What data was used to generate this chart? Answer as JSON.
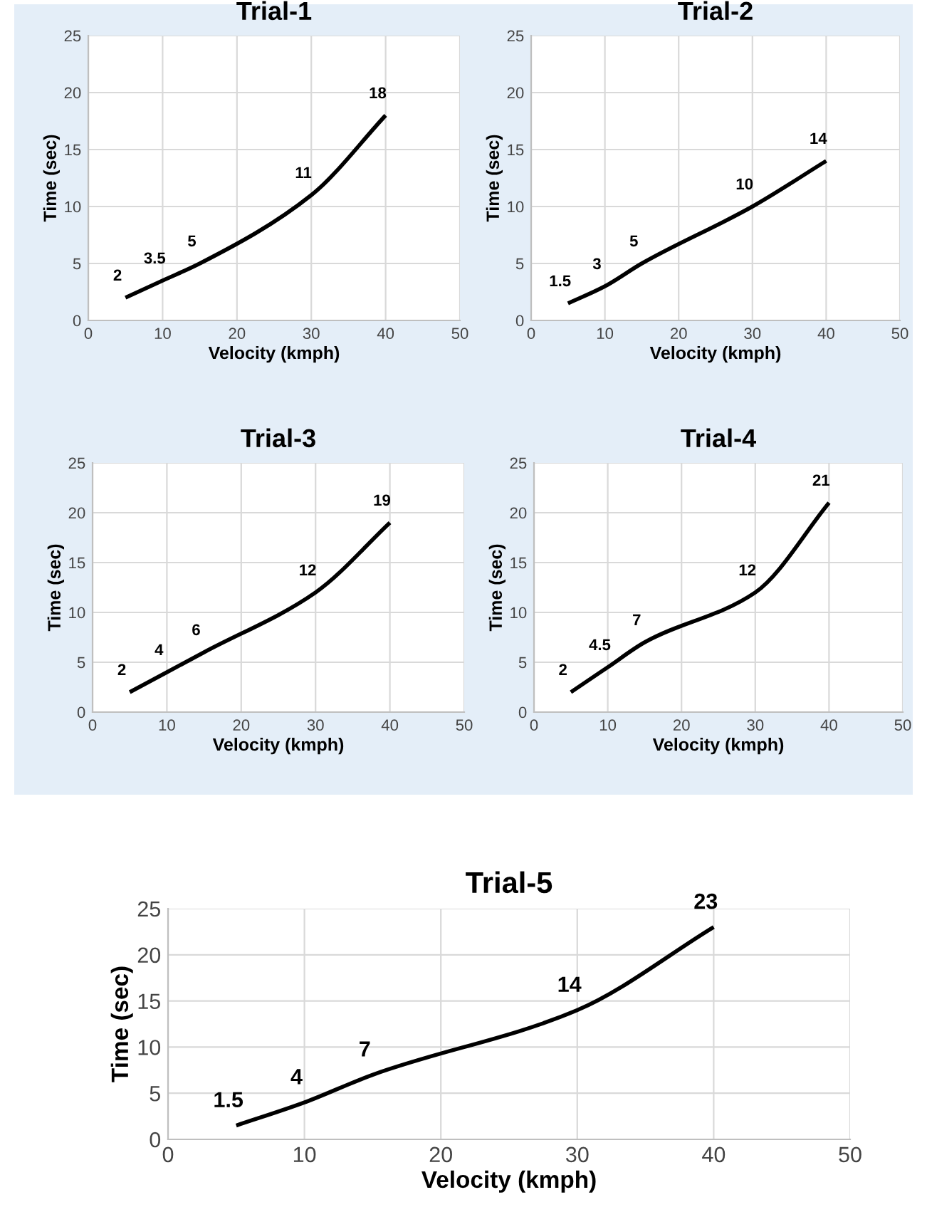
{
  "chart_data": [
    {
      "type": "line",
      "title": "Trial-1",
      "xlabel": "Velocity (kmph)",
      "ylabel": "Time (sec)",
      "x": [
        5,
        10,
        15,
        30,
        40
      ],
      "series": [
        {
          "color": "#000000",
          "values": [
            2,
            3.5,
            5,
            11,
            18
          ]
        }
      ],
      "xlim": [
        0,
        50
      ],
      "xticks": [
        0,
        10,
        20,
        30,
        40,
        50
      ],
      "ylim": [
        0,
        25
      ],
      "yticks": [
        0,
        5,
        10,
        15,
        20,
        25
      ],
      "grid": true,
      "data_labels": true
    },
    {
      "type": "line",
      "title": "Trial-2",
      "xlabel": "Velocity (kmph)",
      "ylabel": "Time (sec)",
      "x": [
        5,
        10,
        15,
        30,
        40
      ],
      "series": [
        {
          "color": "#000000",
          "values": [
            1.5,
            3,
            5,
            10,
            14
          ]
        }
      ],
      "xlim": [
        0,
        50
      ],
      "xticks": [
        0,
        10,
        20,
        30,
        40,
        50
      ],
      "ylim": [
        0,
        25
      ],
      "yticks": [
        0,
        5,
        10,
        15,
        20,
        25
      ],
      "grid": true,
      "data_labels": true
    },
    {
      "type": "line",
      "title": "Trial-3",
      "xlabel": "Velocity (kmph)",
      "ylabel": "Time (sec)",
      "x": [
        5,
        10,
        15,
        30,
        40
      ],
      "series": [
        {
          "color": "#000000",
          "values": [
            2,
            4,
            6,
            12,
            19
          ]
        }
      ],
      "xlim": [
        0,
        50
      ],
      "xticks": [
        0,
        10,
        20,
        30,
        40,
        50
      ],
      "ylim": [
        0,
        25
      ],
      "yticks": [
        0,
        5,
        10,
        15,
        20,
        25
      ],
      "grid": true,
      "data_labels": true
    },
    {
      "type": "line",
      "title": "Trial-4",
      "xlabel": "Velocity (kmph)",
      "ylabel": "Time (sec)",
      "x": [
        5,
        10,
        15,
        30,
        40
      ],
      "series": [
        {
          "color": "#000000",
          "values": [
            2,
            4.5,
            7,
            12,
            21
          ]
        }
      ],
      "xlim": [
        0,
        50
      ],
      "xticks": [
        0,
        10,
        20,
        30,
        40,
        50
      ],
      "ylim": [
        0,
        25
      ],
      "yticks": [
        0,
        5,
        10,
        15,
        20,
        25
      ],
      "grid": true,
      "data_labels": true
    },
    {
      "type": "line",
      "title": "Trial-5",
      "xlabel": "Velocity (kmph)",
      "ylabel": "Time (sec)",
      "x": [
        5,
        10,
        15,
        30,
        40
      ],
      "series": [
        {
          "color": "#000000",
          "values": [
            1.5,
            4,
            7,
            14,
            23
          ]
        }
      ],
      "xlim": [
        0,
        50
      ],
      "xticks": [
        0,
        10,
        20,
        30,
        40,
        50
      ],
      "ylim": [
        0,
        25
      ],
      "yticks": [
        0,
        5,
        10,
        15,
        20,
        25
      ],
      "grid": true,
      "data_labels": true
    }
  ]
}
